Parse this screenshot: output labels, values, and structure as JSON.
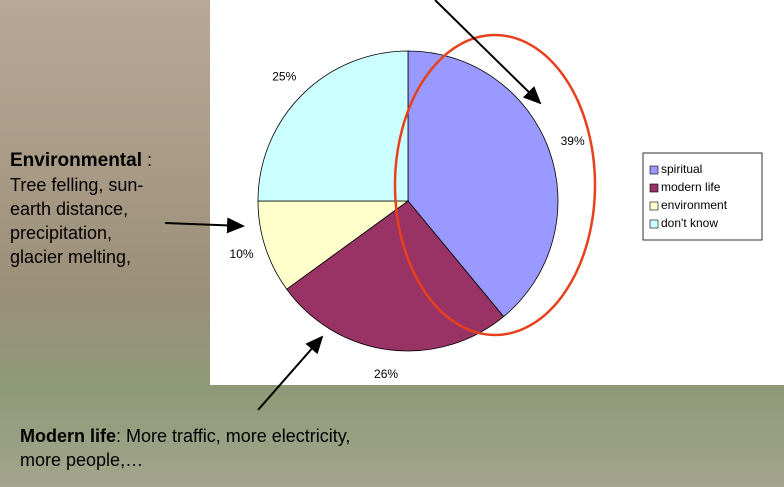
{
  "chart_data": {
    "type": "pie",
    "categories": [
      "spiritual",
      "modern life",
      "environment",
      "don't know"
    ],
    "values": [
      39,
      26,
      10,
      25
    ],
    "value_labels": [
      "39%",
      "26%",
      "10%",
      "25%"
    ],
    "colors": [
      "#9999ff",
      "#993366",
      "#ffffcc",
      "#ccffff"
    ],
    "legend": "right"
  },
  "annotations": [
    {
      "title": "Environmental",
      "text": ": Tree felling, sun-earth distance, precipitation, glacier melting,"
    },
    {
      "title": "Modern life",
      "text": ": More traffic, more electricity, more people,…"
    }
  ]
}
